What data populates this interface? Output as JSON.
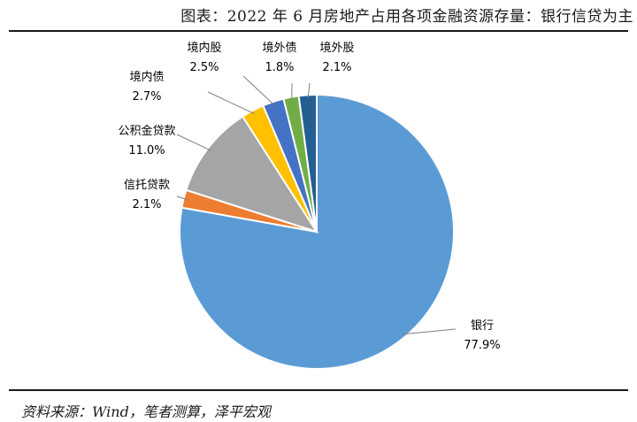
{
  "header": {
    "title": "图表：2022 年 6 月房地产占用各项金融资源存量：银行信贷为主"
  },
  "footer": {
    "source": "资料来源：Wind，笔者测算，泽平宏观"
  },
  "chart_data": {
    "type": "pie",
    "title": "图表：2022 年 6 月房地产占用各项金融资源存量：银行信贷为主",
    "slices": [
      {
        "label": "银行",
        "value": 77.9,
        "value_text": "77.9%",
        "color": "#5b9bd5"
      },
      {
        "label": "信托贷款",
        "value": 2.1,
        "value_text": "2.1%",
        "color": "#ed7d31"
      },
      {
        "label": "公积金贷款",
        "value": 11.0,
        "value_text": "11.0%",
        "color": "#a5a5a5"
      },
      {
        "label": "境内债",
        "value": 2.7,
        "value_text": "2.7%",
        "color": "#ffc000"
      },
      {
        "label": "境内股",
        "value": 2.5,
        "value_text": "2.5%",
        "color": "#4472c4"
      },
      {
        "label": "境外债",
        "value": 1.8,
        "value_text": "1.8%",
        "color": "#70ad47"
      },
      {
        "label": "境外股",
        "value": 2.1,
        "value_text": "2.1%",
        "color": "#255e91"
      }
    ],
    "start_angle": "12 o'clock",
    "direction": "clockwise",
    "labels": "outside with leader lines",
    "legend": "none"
  }
}
